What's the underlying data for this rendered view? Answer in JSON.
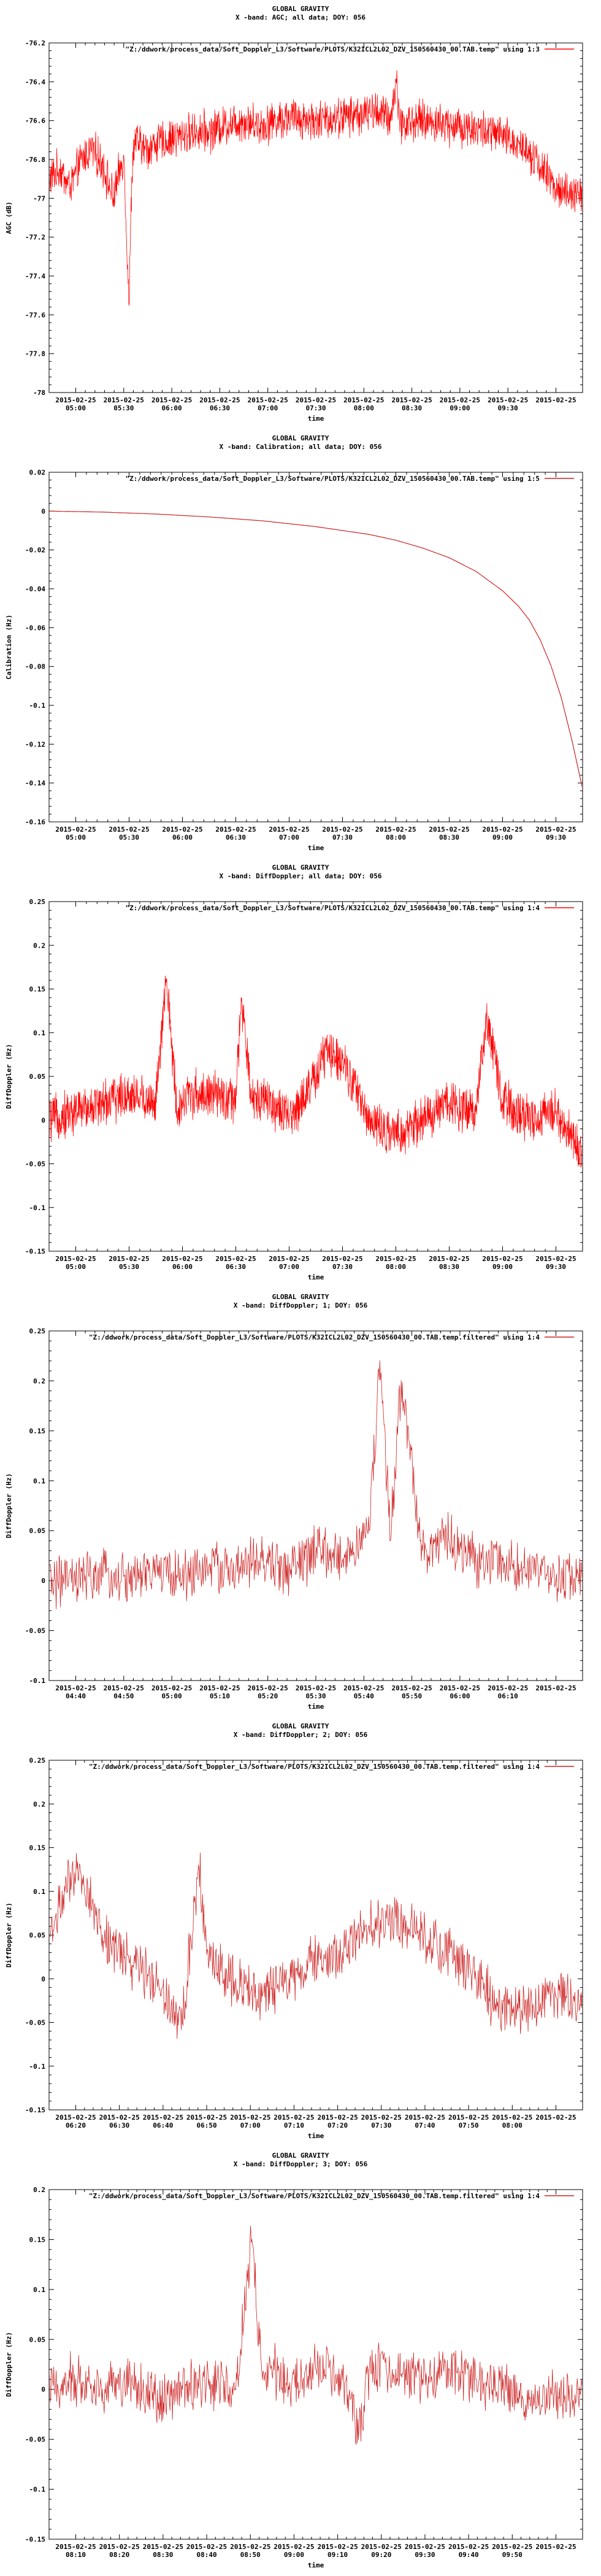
{
  "chart_data": [
    {
      "type": "line",
      "title": "GLOBAL GRAVITY",
      "subtitle": "X -band: AGC; all data; DOY: 056",
      "legend": "\"Z:/ddwork/process_data/Soft_Doppler_L3/Software/PLOTS/K32ICL2L02_DZV_150560430_00.TAB.temp\" using 1:3",
      "legend_color": "#ff0000",
      "xlabel": "time",
      "ylabel": "AGC (dB)",
      "ylim": [
        -78,
        -76.2
      ],
      "yticks": [
        "-76.2",
        "-76.4",
        "-76.6",
        "-76.8",
        "-77",
        "-77.2",
        "-77.4",
        "-77.6",
        "-77.8",
        "-78"
      ],
      "xticks_top": [
        "2015-02-25",
        "2015-02-25",
        "2015-02-25",
        "2015-02-25",
        "2015-02-25",
        "2015-02-25",
        "2015-02-25",
        "2015-02-25",
        "2015-02-25",
        "2015-02-25",
        "2015-02-25"
      ],
      "xticks_bottom": [
        "05:00",
        "05:30",
        "06:00",
        "06:30",
        "07:00",
        "07:30",
        "08:00",
        "08:30",
        "09:00",
        "09:30",
        ""
      ],
      "series": [
        {
          "name": "AGC",
          "color": "#ff0000",
          "x": [
            0,
            0.02,
            0.04,
            0.06,
            0.08,
            0.1,
            0.12,
            0.14,
            0.15,
            0.155,
            0.16,
            0.18,
            0.2,
            0.22,
            0.25,
            0.28,
            0.3,
            0.33,
            0.36,
            0.4,
            0.45,
            0.5,
            0.55,
            0.6,
            0.62,
            0.64,
            0.65,
            0.66,
            0.7,
            0.75,
            0.8,
            0.85,
            0.9,
            0.95,
            1.0
          ],
          "values": [
            -76.9,
            -76.85,
            -76.95,
            -76.8,
            -76.75,
            -76.82,
            -77.0,
            -76.78,
            -77.55,
            -76.9,
            -76.7,
            -76.75,
            -76.72,
            -76.7,
            -76.68,
            -76.65,
            -76.66,
            -76.62,
            -76.6,
            -76.62,
            -76.58,
            -76.6,
            -76.58,
            -76.56,
            -76.55,
            -76.6,
            -76.4,
            -76.62,
            -76.6,
            -76.62,
            -76.64,
            -76.68,
            -76.75,
            -76.95,
            -77.0
          ]
        }
      ]
    },
    {
      "type": "line",
      "title": "GLOBAL GRAVITY",
      "subtitle": "X -band: Calibration; all data; DOY: 056",
      "legend": "\"Z:/ddwork/process_data/Soft_Doppler_L3/Software/PLOTS/K32ICL2L02_DZV_150560430_00.TAB.temp\" using 1:5",
      "legend_color": "#cc2222",
      "xlabel": "time",
      "ylabel": "Calibration (Hz)",
      "ylim": [
        -0.16,
        0.02
      ],
      "yticks": [
        "0.02",
        "0",
        "-0.02",
        "-0.04",
        "-0.06",
        "-0.08",
        "-0.1",
        "-0.12",
        "-0.14",
        "-0.16"
      ],
      "xticks_top": [
        "2015-02-25",
        "2015-02-25",
        "2015-02-25",
        "2015-02-25",
        "2015-02-25",
        "2015-02-25",
        "2015-02-25",
        "2015-02-25",
        "2015-02-25",
        "2015-02-25"
      ],
      "xticks_bottom": [
        "05:00",
        "05:30",
        "06:00",
        "06:30",
        "07:00",
        "07:30",
        "08:00",
        "08:30",
        "09:00",
        "09:30"
      ],
      "series": [
        {
          "name": "Calibration",
          "color": "#cc2222",
          "x": [
            0,
            0.1,
            0.2,
            0.3,
            0.4,
            0.5,
            0.6,
            0.65,
            0.7,
            0.75,
            0.8,
            0.85,
            0.88,
            0.9,
            0.92,
            0.94,
            0.96,
            0.98,
            1.0
          ],
          "values": [
            0.0,
            -0.0005,
            -0.0015,
            -0.003,
            -0.005,
            -0.008,
            -0.012,
            -0.015,
            -0.019,
            -0.024,
            -0.031,
            -0.041,
            -0.049,
            -0.056,
            -0.066,
            -0.079,
            -0.096,
            -0.118,
            -0.143
          ]
        }
      ]
    },
    {
      "type": "line",
      "title": "GLOBAL GRAVITY",
      "subtitle": "X -band: DiffDoppler; all data; DOY: 056",
      "legend": "\"Z:/ddwork/process_data/Soft_Doppler_L3/Software/PLOTS/K32ICL2L02_DZV_150560430_00.TAB.temp\" using 1:4",
      "legend_color": "#ff0000",
      "xlabel": "time",
      "ylabel": "DiffDoppler (Hz)",
      "ylim": [
        -0.15,
        0.25
      ],
      "yticks": [
        "0.25",
        "0.2",
        "0.15",
        "0.1",
        "0.05",
        "0",
        "-0.05",
        "-0.1",
        "-0.15"
      ],
      "xticks_top": [
        "2015-02-25",
        "2015-02-25",
        "2015-02-25",
        "2015-02-25",
        "2015-02-25",
        "2015-02-25",
        "2015-02-25",
        "2015-02-25",
        "2015-02-25",
        "2015-02-25"
      ],
      "xticks_bottom": [
        "05:00",
        "05:30",
        "06:00",
        "06:30",
        "07:00",
        "07:30",
        "08:00",
        "08:30",
        "09:00",
        "09:30"
      ],
      "series": [
        {
          "name": "DiffDoppler",
          "color": "#ff0000",
          "x": [
            0,
            0.05,
            0.1,
            0.15,
            0.2,
            0.22,
            0.24,
            0.26,
            0.3,
            0.35,
            0.36,
            0.38,
            0.4,
            0.45,
            0.5,
            0.52,
            0.55,
            0.6,
            0.65,
            0.7,
            0.75,
            0.8,
            0.82,
            0.85,
            0.9,
            0.95,
            1.0
          ],
          "values": [
            0.0,
            0.01,
            0.02,
            0.03,
            0.02,
            0.16,
            0.01,
            0.03,
            0.03,
            0.02,
            0.14,
            0.02,
            0.03,
            0.0,
            0.05,
            0.08,
            0.07,
            0.0,
            -0.02,
            0.0,
            0.02,
            0.01,
            0.12,
            0.02,
            0.0,
            0.01,
            -0.04
          ]
        }
      ]
    },
    {
      "type": "line",
      "title": "GLOBAL GRAVITY",
      "subtitle": "X -band: DiffDoppler; 1; DOY: 056",
      "legend": "\"Z:/ddwork/process_data/Soft_Doppler_L3/Software/PLOTS/K32ICL2L02_DZV_150560430_00.TAB.temp.filtered\" using 1:4",
      "legend_color": "#cc2222",
      "xlabel": "time",
      "ylabel": "DiffDoppler (Hz)",
      "ylim": [
        -0.1,
        0.25
      ],
      "yticks": [
        "0.25",
        "0.2",
        "0.15",
        "0.1",
        "0.05",
        "0",
        "-0.05",
        "-0.1"
      ],
      "xticks_top": [
        "2015-02-25",
        "2015-02-25",
        "2015-02-25",
        "2015-02-25",
        "2015-02-25",
        "2015-02-25",
        "2015-02-25",
        "2015-02-25",
        "2015-02-25",
        "2015-02-25",
        "2015-02-25"
      ],
      "xticks_bottom": [
        "04:40",
        "04:50",
        "05:00",
        "05:10",
        "05:20",
        "05:30",
        "05:40",
        "05:50",
        "06:00",
        "06:10",
        ""
      ],
      "series": [
        {
          "name": "DiffDoppler filtered",
          "color": "#cc2222",
          "x": [
            0,
            0.05,
            0.1,
            0.15,
            0.2,
            0.25,
            0.3,
            0.35,
            0.4,
            0.45,
            0.5,
            0.55,
            0.6,
            0.62,
            0.64,
            0.66,
            0.7,
            0.75,
            0.8,
            0.85,
            0.9,
            0.95,
            1.0
          ],
          "values": [
            0.0,
            0.0,
            0.005,
            0.0,
            0.01,
            0.005,
            0.015,
            0.01,
            0.02,
            0.01,
            0.03,
            0.02,
            0.05,
            0.22,
            0.04,
            0.2,
            0.03,
            0.04,
            0.02,
            0.02,
            0.01,
            0.0,
            0.01
          ]
        }
      ]
    },
    {
      "type": "line",
      "title": "GLOBAL GRAVITY",
      "subtitle": "X -band: DiffDoppler; 2; DOY: 056",
      "legend": "\"Z:/ddwork/process_data/Soft_Doppler_L3/Software/PLOTS/K32ICL2L02_DZV_150560430_00.TAB.temp.filtered\" using 1:4",
      "legend_color": "#cc2222",
      "xlabel": "time",
      "ylabel": "DiffDoppler (Hz)",
      "ylim": [
        -0.15,
        0.25
      ],
      "yticks": [
        "0.25",
        "0.2",
        "0.15",
        "0.1",
        "0.05",
        "0",
        "-0.05",
        "-0.1",
        "-0.15"
      ],
      "xticks_top": [
        "2015-02-25",
        "2015-02-25",
        "2015-02-25",
        "2015-02-25",
        "2015-02-25",
        "2015-02-25",
        "2015-02-25",
        "2015-02-25",
        "2015-02-25",
        "2015-02-25",
        "2015-02-25",
        "2015-02-25"
      ],
      "xticks_bottom": [
        "06:20",
        "06:30",
        "06:40",
        "06:50",
        "07:00",
        "07:10",
        "07:20",
        "07:30",
        "07:40",
        "07:50",
        "08:00",
        ""
      ],
      "series": [
        {
          "name": "DiffDoppler filtered",
          "color": "#cc2222",
          "x": [
            0,
            0.03,
            0.06,
            0.1,
            0.15,
            0.2,
            0.25,
            0.28,
            0.3,
            0.35,
            0.4,
            0.45,
            0.5,
            0.55,
            0.6,
            0.65,
            0.7,
            0.75,
            0.8,
            0.85,
            0.9,
            0.95,
            1.0
          ],
          "values": [
            0.05,
            0.1,
            0.12,
            0.05,
            0.02,
            0.0,
            -0.05,
            0.13,
            0.02,
            0.0,
            -0.02,
            0.0,
            0.02,
            0.03,
            0.06,
            0.07,
            0.05,
            0.03,
            0.0,
            -0.04,
            -0.03,
            -0.02,
            -0.02
          ]
        }
      ]
    },
    {
      "type": "line",
      "title": "GLOBAL GRAVITY",
      "subtitle": "X -band: DiffDoppler; 3; DOY: 056",
      "legend": "\"Z:/ddwork/process_data/Soft_Doppler_L3/Software/PLOTS/K32ICL2L02_DZV_150560430_00.TAB.temp.filtered\" using 1:4",
      "legend_color": "#cc2222",
      "xlabel": "time",
      "ylabel": "DiffDoppler (Hz)",
      "ylim": [
        -0.15,
        0.2
      ],
      "yticks": [
        "0.2",
        "0.15",
        "0.1",
        "0.05",
        "0",
        "-0.05",
        "-0.1",
        "-0.15"
      ],
      "xticks_top": [
        "2015-02-25",
        "2015-02-25",
        "2015-02-25",
        "2015-02-25",
        "2015-02-25",
        "2015-02-25",
        "2015-02-25",
        "2015-02-25",
        "2015-02-25",
        "2015-02-25",
        "2015-02-25",
        "2015-02-25"
      ],
      "xticks_bottom": [
        "08:10",
        "08:20",
        "08:30",
        "08:40",
        "08:50",
        "09:00",
        "09:10",
        "09:20",
        "09:30",
        "09:40",
        "09:50",
        ""
      ],
      "series": [
        {
          "name": "DiffDoppler filtered",
          "color": "#cc2222",
          "x": [
            0,
            0.05,
            0.1,
            0.15,
            0.2,
            0.25,
            0.3,
            0.35,
            0.38,
            0.4,
            0.42,
            0.45,
            0.5,
            0.55,
            0.58,
            0.6,
            0.65,
            0.7,
            0.75,
            0.8,
            0.85,
            0.9,
            0.95,
            1.0
          ],
          "values": [
            0.0,
            0.01,
            0.0,
            0.01,
            -0.01,
            0.0,
            0.01,
            0.0,
            0.15,
            0.01,
            0.02,
            0.0,
            0.02,
            0.01,
            -0.05,
            0.02,
            0.02,
            0.01,
            0.02,
            0.01,
            0.0,
            -0.01,
            -0.01,
            0.0
          ]
        }
      ]
    }
  ]
}
